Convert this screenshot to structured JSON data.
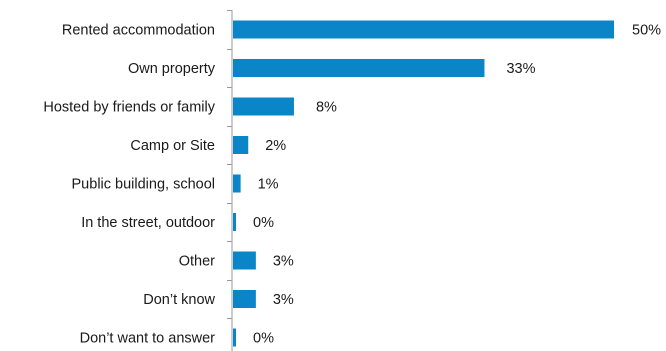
{
  "chart_data": {
    "type": "bar",
    "orientation": "horizontal",
    "categories": [
      "Rented accommodation",
      "Own property",
      "Hosted by friends or family",
      "Camp or Site",
      "Public building, school",
      "In the street, outdoor",
      "Other",
      "Don’t know",
      "Don’t want to answer"
    ],
    "values": [
      50,
      33,
      8,
      2,
      1,
      0,
      3,
      3,
      0
    ],
    "value_labels": [
      "50%",
      "33%",
      "8%",
      "2%",
      "1%",
      "0%",
      "3%",
      "3%",
      "0%"
    ],
    "xlim": [
      0,
      50
    ],
    "grid": false,
    "legend": "none",
    "bar_color": "#0a86c8",
    "axis_color": "#9a9a9a"
  }
}
